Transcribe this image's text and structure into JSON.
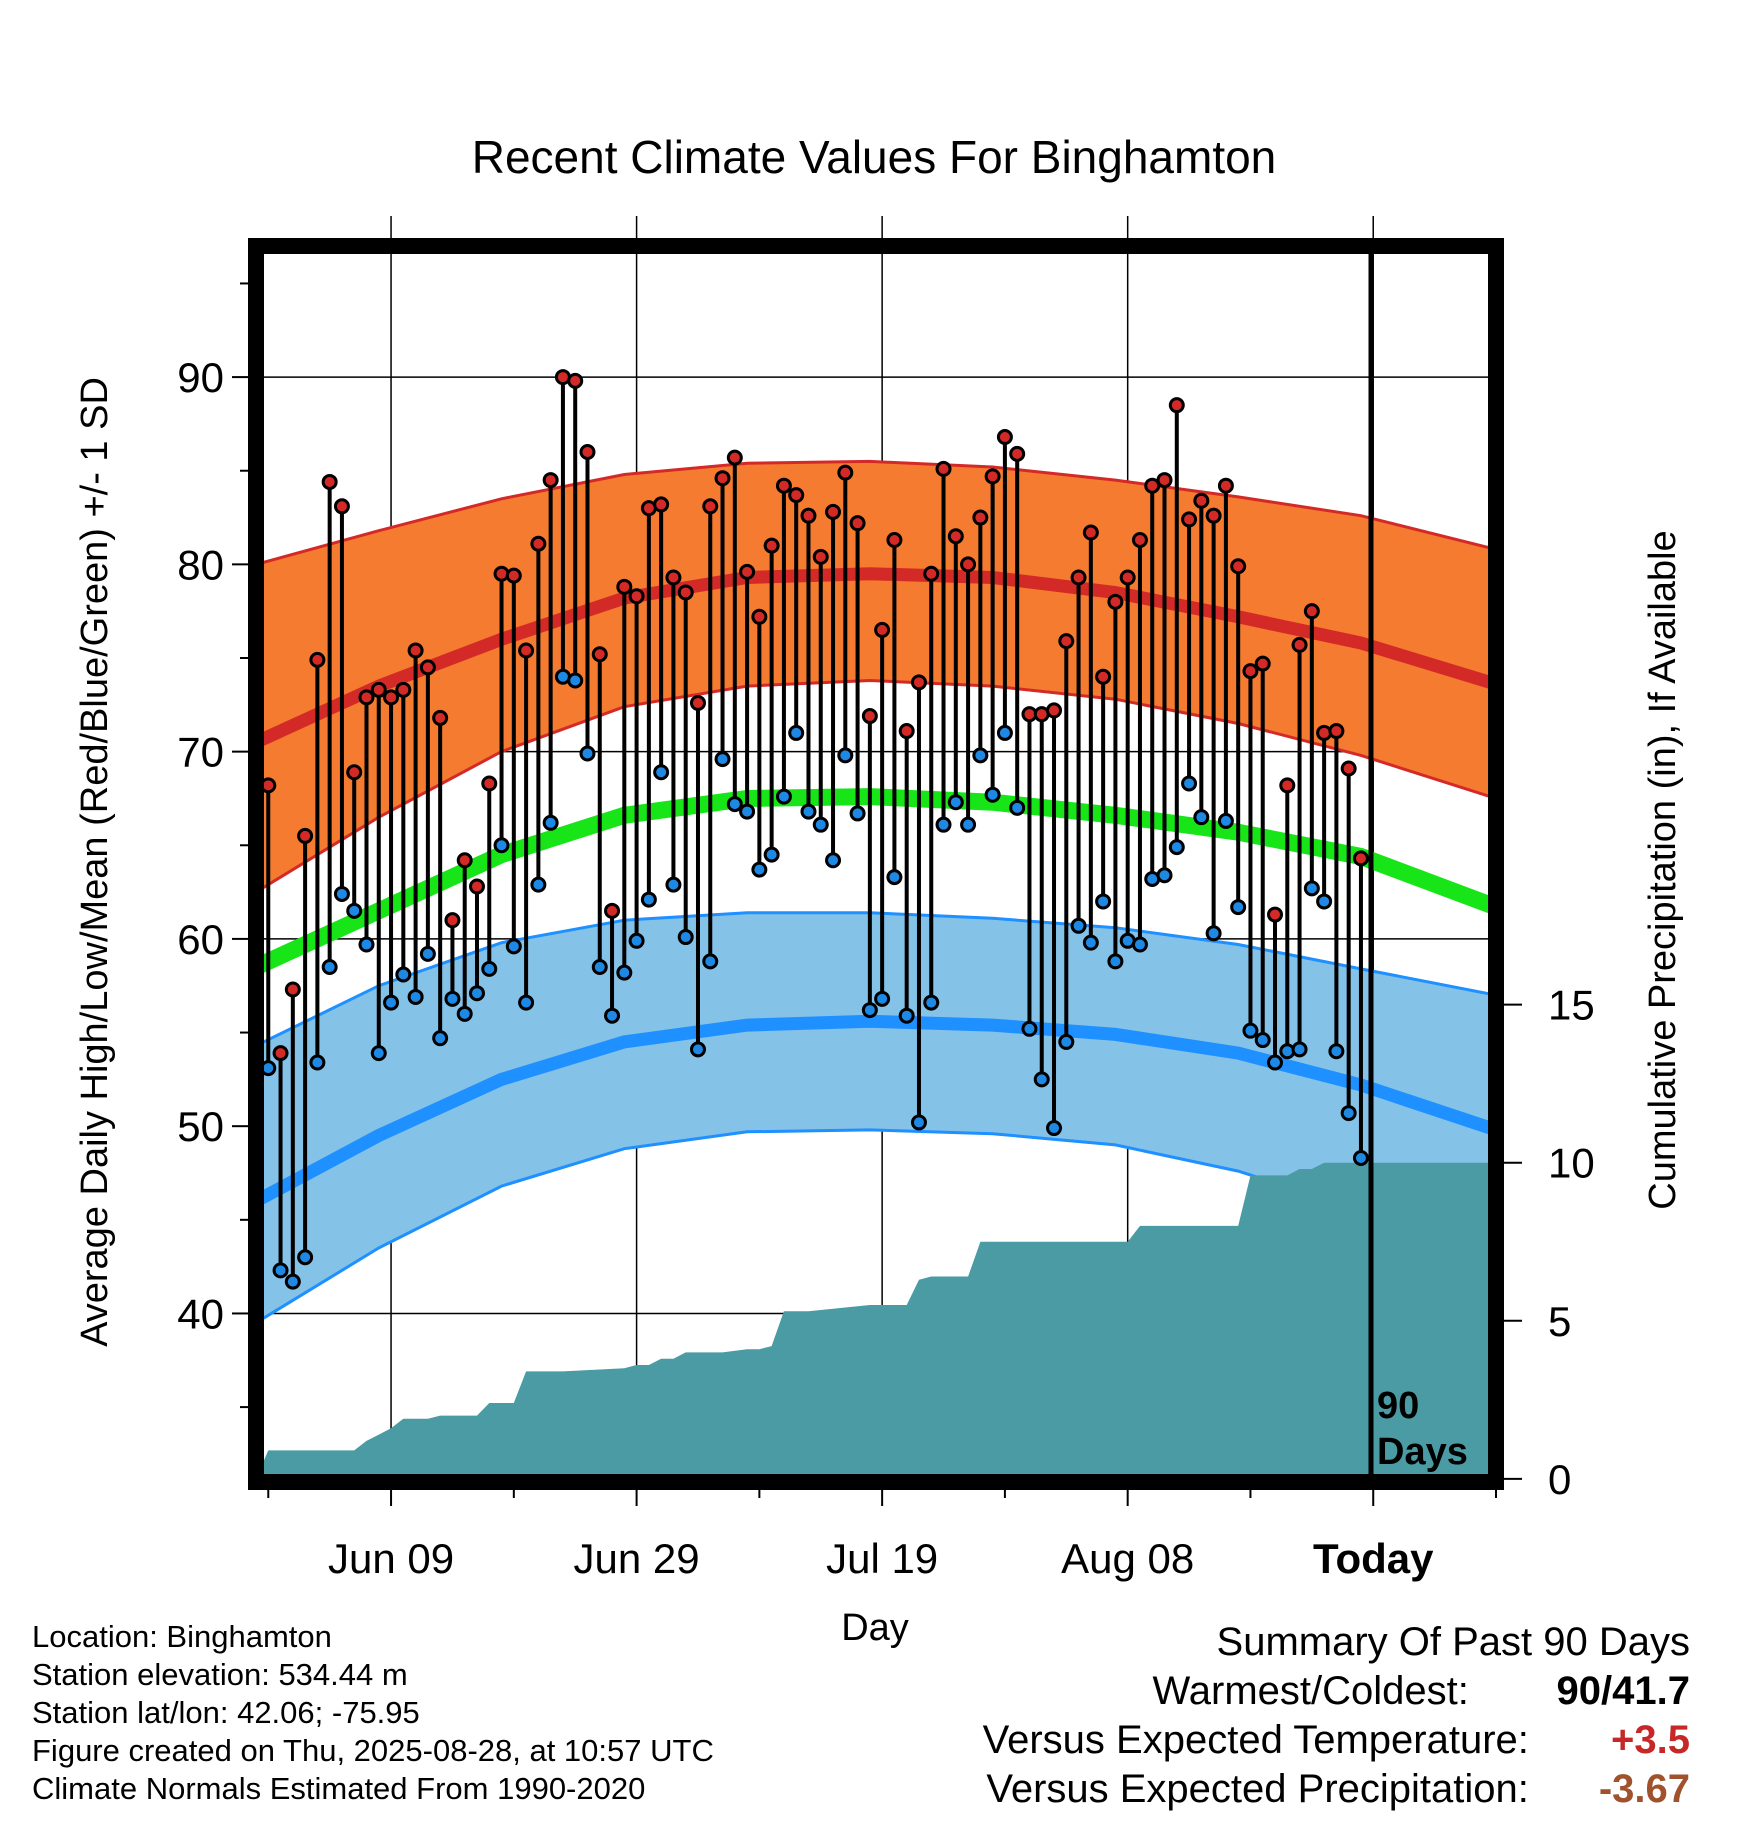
{
  "chart_data": {
    "type": "line",
    "title": "Recent Climate Values For Binghamton",
    "xlabel": "Day",
    "ylabel": "Average Daily High/Low/Mean (Red/Blue/Green) +/- 1 SD",
    "y2label": "Cumulative Precipitation (in), If Available",
    "x_tick_labels": [
      "Jun 09",
      "Jun 29",
      "Jul 19",
      "Aug 08",
      "Today"
    ],
    "x_tick_days": [
      11,
      31,
      51,
      71,
      91
    ],
    "xlim_days": [
      0,
      101
    ],
    "ylim": [
      31,
      97
    ],
    "y_ticks": [
      40,
      50,
      60,
      70,
      80,
      90
    ],
    "y2lim": [
      -0.1,
      39
    ],
    "y2_ticks": [
      0,
      5,
      10,
      15
    ],
    "today_marker": "90\nDays",
    "today_marker_lines": [
      "90",
      "Days"
    ],
    "colors": {
      "high_band": "#f47b2f",
      "high_line": "#d42a27",
      "low_band": "#85c2e8",
      "low_line": "#1e90ff",
      "mean_line": "#18e518",
      "precip": "#4a9ba3",
      "high_dot": "#d42a27",
      "low_dot": "#1e88e5"
    },
    "normals": {
      "days": [
        0,
        10,
        20,
        30,
        40,
        50,
        60,
        70,
        80,
        90,
        101
      ],
      "high_mean": [
        70.5,
        73.5,
        76.0,
        78.2,
        79.3,
        79.5,
        79.3,
        78.5,
        77.2,
        75.8,
        73.6
      ],
      "high_sd_upper": [
        80.0,
        81.8,
        83.5,
        84.8,
        85.4,
        85.5,
        85.2,
        84.5,
        83.6,
        82.6,
        80.8
      ],
      "high_sd_lower": [
        62.5,
        66.5,
        70.0,
        72.4,
        73.5,
        73.8,
        73.5,
        72.8,
        71.5,
        69.8,
        67.5
      ],
      "mean": [
        58.5,
        61.5,
        64.5,
        66.6,
        67.5,
        67.6,
        67.3,
        66.6,
        65.7,
        64.4,
        61.7
      ],
      "low_mean": [
        46.0,
        49.5,
        52.5,
        54.5,
        55.4,
        55.6,
        55.4,
        54.9,
        53.9,
        52.2,
        49.8
      ],
      "low_sd_upper": [
        54.3,
        57.5,
        59.8,
        61.0,
        61.4,
        61.4,
        61.1,
        60.6,
        59.7,
        58.4,
        57.0
      ],
      "low_sd_lower": [
        39.5,
        43.5,
        46.8,
        48.8,
        49.7,
        49.8,
        49.6,
        49.0,
        47.6,
        45.5,
        43.8
      ]
    },
    "series": [
      {
        "name": "Daily High",
        "x": [
          1,
          2,
          3,
          4,
          5,
          6,
          7,
          8,
          9,
          10,
          11,
          12,
          13,
          14,
          15,
          16,
          17,
          18,
          19,
          20,
          21,
          22,
          23,
          24,
          25,
          26,
          27,
          28,
          29,
          30,
          31,
          32,
          33,
          34,
          35,
          36,
          37,
          38,
          39,
          40,
          41,
          42,
          43,
          44,
          45,
          46,
          47,
          48,
          49,
          50,
          51,
          52,
          53,
          54,
          55,
          56,
          57,
          58,
          59,
          60,
          61,
          62,
          63,
          64,
          65,
          66,
          67,
          68,
          69,
          70,
          71,
          72,
          73,
          74,
          75,
          76,
          77,
          78,
          79,
          80,
          81,
          82,
          83,
          84,
          85,
          86,
          87,
          88,
          89,
          90
        ],
        "values": [
          68.2,
          53.9,
          57.3,
          65.5,
          74.9,
          84.4,
          83.1,
          68.9,
          72.9,
          73.3,
          72.9,
          73.3,
          75.4,
          74.5,
          71.8,
          61.0,
          64.2,
          62.8,
          68.3,
          79.5,
          79.4,
          75.4,
          81.1,
          84.5,
          90.0,
          89.8,
          86.0,
          75.2,
          61.5,
          78.8,
          78.3,
          83.0,
          83.2,
          79.3,
          78.5,
          72.6,
          83.1,
          84.6,
          85.7,
          79.6,
          77.2,
          81.0,
          84.2,
          83.7,
          82.6,
          80.4,
          82.8,
          84.9,
          82.2,
          71.9,
          76.5,
          81.3,
          71.1,
          73.7,
          79.5,
          85.1,
          81.5,
          80.0,
          82.5,
          84.7,
          86.8,
          85.9,
          72.0,
          72.0,
          72.2,
          75.9,
          79.3,
          81.7,
          74.0,
          78.0,
          79.3,
          81.3,
          84.2,
          84.5,
          88.5,
          82.4,
          83.4,
          82.6,
          84.2,
          79.9,
          74.3,
          74.7,
          61.3,
          68.2,
          75.7,
          77.5,
          71.0,
          71.1,
          69.1,
          64.3
        ]
      },
      {
        "name": "Daily Low",
        "x": [
          1,
          2,
          3,
          4,
          5,
          6,
          7,
          8,
          9,
          10,
          11,
          12,
          13,
          14,
          15,
          16,
          17,
          18,
          19,
          20,
          21,
          22,
          23,
          24,
          25,
          26,
          27,
          28,
          29,
          30,
          31,
          32,
          33,
          34,
          35,
          36,
          37,
          38,
          39,
          40,
          41,
          42,
          43,
          44,
          45,
          46,
          47,
          48,
          49,
          50,
          51,
          52,
          53,
          54,
          55,
          56,
          57,
          58,
          59,
          60,
          61,
          62,
          63,
          64,
          65,
          66,
          67,
          68,
          69,
          70,
          71,
          72,
          73,
          74,
          75,
          76,
          77,
          78,
          79,
          80,
          81,
          82,
          83,
          84,
          85,
          86,
          87,
          88,
          89,
          90
        ],
        "values": [
          53.1,
          42.3,
          41.7,
          43.0,
          53.4,
          58.5,
          62.4,
          61.5,
          59.7,
          53.9,
          56.6,
          58.1,
          56.9,
          59.2,
          54.7,
          56.8,
          56.0,
          57.1,
          58.4,
          65.0,
          59.6,
          56.6,
          62.9,
          66.2,
          74.0,
          73.8,
          69.9,
          58.5,
          55.9,
          58.2,
          59.9,
          62.1,
          68.9,
          62.9,
          60.1,
          54.1,
          58.8,
          69.6,
          67.2,
          66.8,
          63.7,
          64.5,
          67.6,
          71.0,
          66.8,
          66.1,
          64.2,
          69.8,
          66.7,
          56.2,
          56.8,
          63.3,
          55.9,
          50.2,
          56.6,
          66.1,
          67.3,
          66.1,
          69.8,
          67.7,
          71.0,
          67.0,
          55.2,
          52.5,
          49.9,
          54.5,
          60.7,
          59.8,
          62.0,
          58.8,
          59.9,
          59.7,
          63.2,
          63.4,
          64.9,
          68.3,
          66.5,
          60.3,
          66.3,
          61.7,
          55.1,
          54.6,
          53.4,
          54.0,
          54.1,
          62.7,
          62.0,
          54.0,
          50.7,
          48.3
        ]
      }
    ],
    "precip_cumulative": {
      "days": [
        0,
        1,
        8,
        9,
        10,
        11,
        12,
        13,
        14,
        15,
        16,
        17,
        18,
        19,
        20,
        21,
        22,
        23,
        24,
        25,
        30,
        31,
        32,
        33,
        34,
        35,
        36,
        37,
        38,
        40,
        41,
        42,
        43,
        44,
        45,
        50,
        51,
        52,
        53,
        54,
        55,
        56,
        57,
        58,
        59,
        60,
        61,
        62,
        63,
        64,
        65,
        66,
        67,
        68,
        69,
        70,
        71,
        72,
        73,
        74,
        75,
        76,
        77,
        78,
        79,
        80,
        81,
        82,
        83,
        84,
        85,
        86,
        87,
        88,
        89,
        90,
        101
      ],
      "values": [
        0,
        0.9,
        0.9,
        1.2,
        1.4,
        1.6,
        1.9,
        1.9,
        1.9,
        2.0,
        2.0,
        2.0,
        2.0,
        2.4,
        2.4,
        2.4,
        3.4,
        3.4,
        3.4,
        3.4,
        3.5,
        3.6,
        3.6,
        3.8,
        3.8,
        4.0,
        4.0,
        4.0,
        4.0,
        4.1,
        4.1,
        4.2,
        5.3,
        5.3,
        5.3,
        5.5,
        5.5,
        5.5,
        5.5,
        6.3,
        6.4,
        6.4,
        6.4,
        6.4,
        7.5,
        7.5,
        7.5,
        7.5,
        7.5,
        7.5,
        7.5,
        7.5,
        7.5,
        7.5,
        7.5,
        7.5,
        7.5,
        8.0,
        8.0,
        8.0,
        8.0,
        8.0,
        8.0,
        8.0,
        8.0,
        8.0,
        9.6,
        9.6,
        9.6,
        9.6,
        9.8,
        9.8,
        10.0,
        10.0,
        10.0,
        10.0,
        10.0
      ]
    }
  },
  "footer": {
    "location": "Location: Binghamton",
    "elevation": "Station elevation: 534.44 m",
    "latlon": "Station lat/lon: 42.06; -75.95",
    "created": "Figure created on Thu, 2025-08-28, at 10:57 UTC",
    "normals": "Climate Normals Estimated From 1990-2020"
  },
  "summary": {
    "title": "Summary Of Past 90 Days",
    "warmest_coldest_label": "Warmest/Coldest:",
    "warmest": "90",
    "slash": "/",
    "coldest": "41.7",
    "temp_label": "Versus Expected Temperature:",
    "temp_value": "+3.5",
    "temp_color": "#c62828",
    "precip_label": "Versus Expected Precipitation:",
    "precip_value": "-3.67",
    "precip_color": "#a0522d"
  }
}
